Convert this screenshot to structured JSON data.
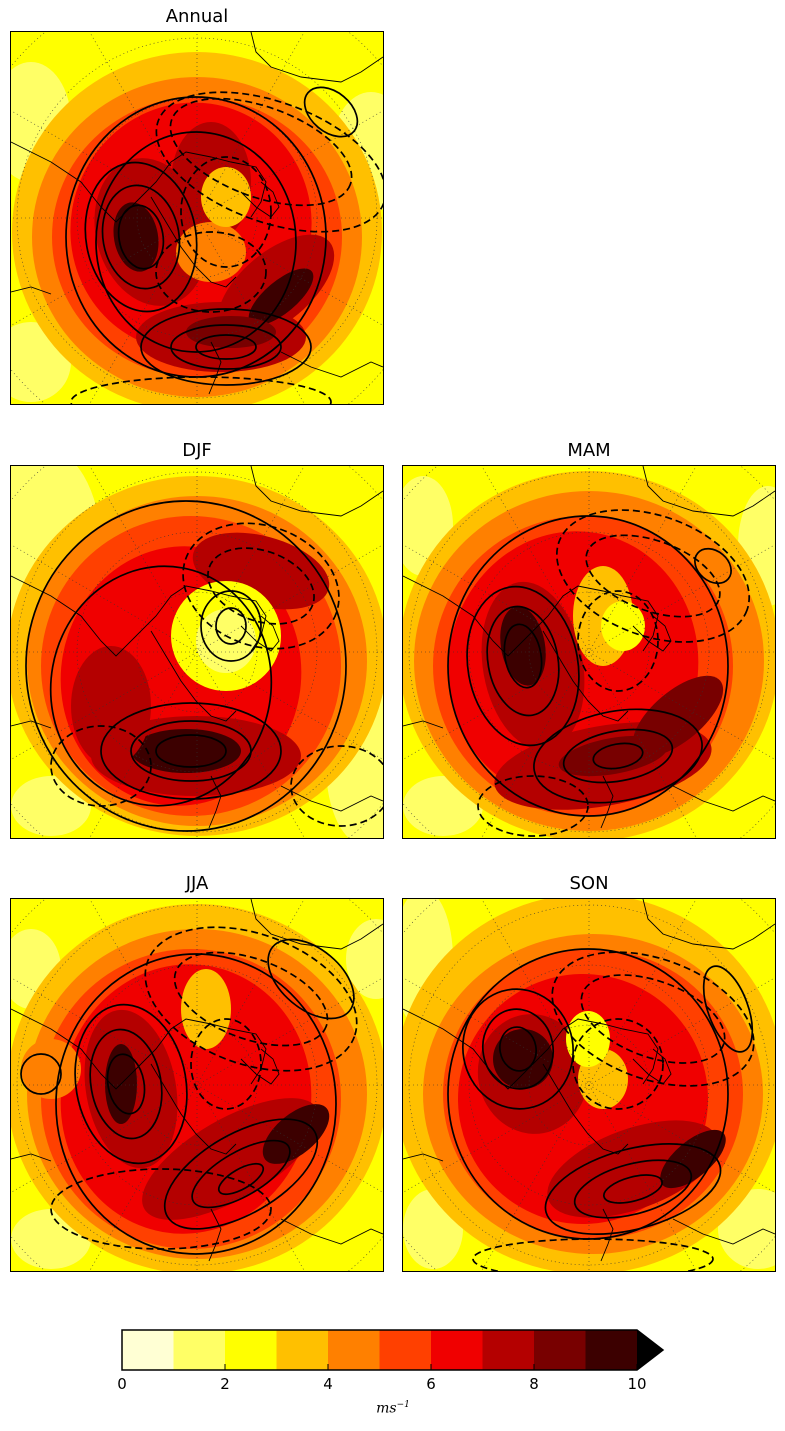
{
  "panels": [
    {
      "id": "annual",
      "title": "Annual",
      "variant": 0
    },
    {
      "id": "djf",
      "title": "DJF",
      "variant": 1
    },
    {
      "id": "mam",
      "title": "MAM",
      "variant": 2
    },
    {
      "id": "jja",
      "title": "JJA",
      "variant": 3
    },
    {
      "id": "son",
      "title": "SON",
      "variant": 4
    }
  ],
  "colorbar": {
    "levels": [
      0,
      1,
      2,
      3,
      4,
      5,
      6,
      7,
      8,
      9,
      10
    ],
    "tick_labels": [
      "0",
      "2",
      "4",
      "6",
      "8",
      "10"
    ],
    "colors": [
      "#ffffd4",
      "#ffff66",
      "#ffff00",
      "#ffc000",
      "#ff8000",
      "#ff4000",
      "#f00000",
      "#b40000",
      "#780000",
      "#3c0000"
    ],
    "extend_color": "#000000",
    "units_base": "ms",
    "units_exp": "−1"
  },
  "map": {
    "contours": "black solid = positive, dashed = negative",
    "grid": "dotted",
    "projection": "polar stereographic"
  }
}
